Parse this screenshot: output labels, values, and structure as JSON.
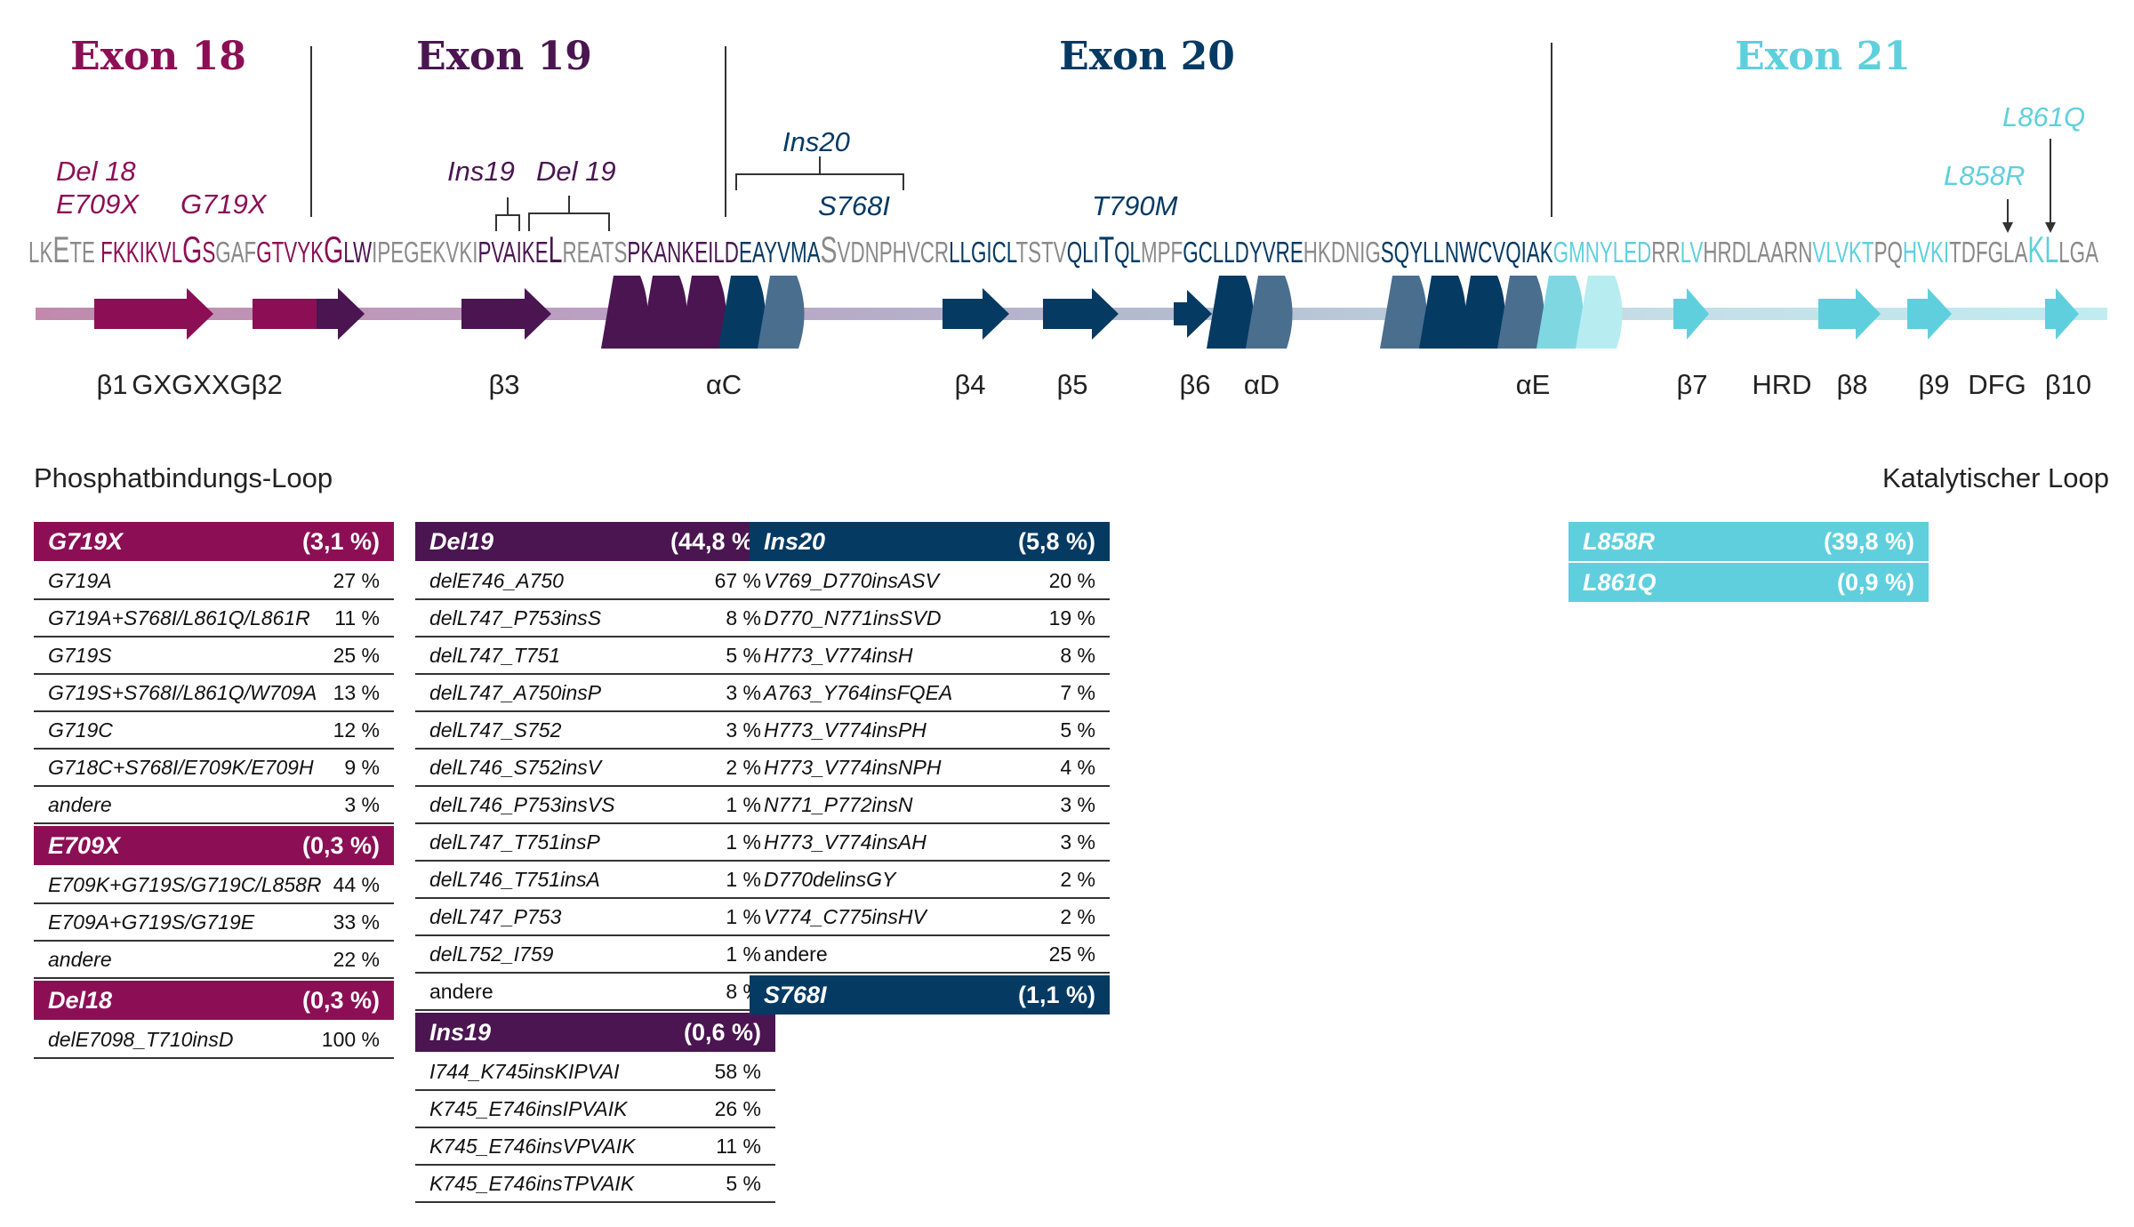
{
  "exons": [
    {
      "label": "Exon 18",
      "color": "#8c0f55"
    },
    {
      "label": "Exon 19",
      "color": "#4a1551"
    },
    {
      "label": "Exon 20",
      "color": "#053a63"
    },
    {
      "label": "Exon 21",
      "color": "#5fcfdd"
    }
  ],
  "mutations": {
    "del18": "Del 18",
    "e709x": "E709X",
    "g719x": "G719X",
    "ins19": "Ins19",
    "del19": "Del 19",
    "ins20": "Ins20",
    "s768i": "S768I",
    "t790m": "T790M",
    "l858r": "L858R",
    "l861q": "L861Q"
  },
  "sequence": [
    {
      "text": "LK",
      "color": "#8a8a8a"
    },
    {
      "text": "E",
      "color": "#8a8a8a",
      "big": true
    },
    {
      "text": "TE ",
      "color": "#8a8a8a"
    },
    {
      "text": "FKKIKVL",
      "color": "#8c0f55"
    },
    {
      "text": "G",
      "color": "#8c0f55",
      "big": true
    },
    {
      "text": "S",
      "color": "#8c0f55"
    },
    {
      "text": "GAF",
      "color": "#8a8a8a"
    },
    {
      "text": "GTVYK",
      "color": "#8c0f55"
    },
    {
      "text": "G",
      "color": "#8c0f55",
      "big": true
    },
    {
      "text": "LW",
      "color": "#4a1551"
    },
    {
      "text": "IPEGEKVKI",
      "color": "#8a8a8a"
    },
    {
      "text": "PVAIKE",
      "color": "#4a1551"
    },
    {
      "text": "L",
      "color": "#4a1551",
      "big": true
    },
    {
      "text": "REATS",
      "color": "#8a8a8a"
    },
    {
      "text": "PKANKEILD",
      "color": "#4a1551"
    },
    {
      "text": "EAYVMA",
      "color": "#053a63"
    },
    {
      "text": "S",
      "color": "#8a8a8a",
      "big": true
    },
    {
      "text": "VDNPHVCR",
      "color": "#8a8a8a"
    },
    {
      "text": "LLGICL",
      "color": "#053a63"
    },
    {
      "text": "TSTV",
      "color": "#8a8a8a"
    },
    {
      "text": "QLI",
      "color": "#053a63"
    },
    {
      "text": "T",
      "color": "#053a63",
      "big": true
    },
    {
      "text": "QL",
      "color": "#053a63"
    },
    {
      "text": "MPF",
      "color": "#8a8a8a"
    },
    {
      "text": "GCLLDYVRE",
      "color": "#053a63"
    },
    {
      "text": "HKDNIG",
      "color": "#8a8a8a"
    },
    {
      "text": "SQYLLNWCVQIAK",
      "color": "#053a63"
    },
    {
      "text": "GMNYLED",
      "color": "#5fcfdd"
    },
    {
      "text": "RR",
      "color": "#8a8a8a"
    },
    {
      "text": "LV",
      "color": "#5fcfdd"
    },
    {
      "text": "HRDLAARN",
      "color": "#8a8a8a"
    },
    {
      "text": "VLVKT",
      "color": "#5fcfdd"
    },
    {
      "text": "PQ",
      "color": "#8a8a8a"
    },
    {
      "text": "HVKI",
      "color": "#5fcfdd"
    },
    {
      "text": "TDFGLA",
      "color": "#8a8a8a"
    },
    {
      "text": "KL",
      "color": "#5fcfdd",
      "big": true
    },
    {
      "text": "LGA",
      "color": "#8a8a8a"
    }
  ],
  "structure_labels": [
    "β1",
    "GXGXXGβ2",
    "β3",
    "αC",
    "β4",
    "β5",
    "β6",
    "αD",
    "αE",
    "β7",
    "HRD",
    "β8",
    "β9",
    "DFG",
    "β10"
  ],
  "region_labels": {
    "phosphate_loop": "Phosphatbindungs-Loop",
    "catalytic_loop": "Katalytischer Loop"
  },
  "tables": {
    "exon18": [
      {
        "name": "G719X",
        "pct": "(3,1 %)",
        "color": "#8c0f55",
        "rows": [
          {
            "name": "G719A",
            "value": "27 %"
          },
          {
            "name": "G719A+S768I/L861Q/L861R",
            "value": "11 %"
          },
          {
            "name": "G719S",
            "value": "25 %"
          },
          {
            "name": "G719S+S768I/L861Q/W709A",
            "value": "13 %"
          },
          {
            "name": "G719C",
            "value": "12 %"
          },
          {
            "name": "G718C+S768I/E709K/E709H",
            "value": "9 %"
          },
          {
            "name": "andere",
            "value": "3 %"
          }
        ]
      },
      {
        "name": "E709X",
        "pct": "(0,3 %)",
        "color": "#8c0f55",
        "rows": [
          {
            "name": "E709K+G719S/G719C/L858R",
            "value": "44 %"
          },
          {
            "name": "E709A+G719S/G719E",
            "value": "33 %"
          },
          {
            "name": "andere",
            "value": "22 %"
          }
        ]
      },
      {
        "name": "Del18",
        "pct": "(0,3 %)",
        "color": "#8c0f55",
        "rows": [
          {
            "name": "delE7098_T710insD",
            "value": "100 %"
          }
        ]
      }
    ],
    "exon19": [
      {
        "name": "Del19",
        "pct": "(44,8 %)",
        "color": "#4a1551",
        "rows": [
          {
            "name": "delE746_A750",
            "value": "67 %"
          },
          {
            "name": "delL747_P753insS",
            "value": "8 %"
          },
          {
            "name": "delL747_T751",
            "value": "5 %"
          },
          {
            "name": "delL747_A750insP",
            "value": "3 %"
          },
          {
            "name": "delL747_S752",
            "value": "3 %"
          },
          {
            "name": "delL746_S752insV",
            "value": "2 %"
          },
          {
            "name": "delL746_P753insVS",
            "value": "1 %"
          },
          {
            "name": "delL747_T751insP",
            "value": "1 %"
          },
          {
            "name": "delL746_T751insA",
            "value": "1 %"
          },
          {
            "name": "delL747_P753",
            "value": "1 %"
          },
          {
            "name": "delL752_I759",
            "value": "1 %"
          },
          {
            "name": "andere",
            "value": "8 %",
            "plain": true
          }
        ]
      },
      {
        "name": "Ins19",
        "pct": "(0,6 %)",
        "color": "#4a1551",
        "rows": [
          {
            "name": "I744_K745insKIPVAI",
            "value": "58 %"
          },
          {
            "name": "K745_E746insIPVAIK",
            "value": "26 %"
          },
          {
            "name": "K745_E746insVPVAIK",
            "value": "11 %"
          },
          {
            "name": "K745_E746insTPVAIK",
            "value": "5 %"
          }
        ]
      }
    ],
    "exon20": [
      {
        "name": "Ins20",
        "pct": "(5,8 %)",
        "color": "#053a63",
        "rows": [
          {
            "name": "V769_D770insASV",
            "value": "20 %"
          },
          {
            "name": "D770_N771insSVD",
            "value": "19 %"
          },
          {
            "name": "H773_V774insH",
            "value": "8 %"
          },
          {
            "name": "A763_Y764insFQEA",
            "value": "7 %"
          },
          {
            "name": "H773_V774insPH",
            "value": "5 %"
          },
          {
            "name": "H773_V774insNPH",
            "value": "4 %"
          },
          {
            "name": "N771_P772insN",
            "value": "3 %"
          },
          {
            "name": "H773_V774insAH",
            "value": "3 %"
          },
          {
            "name": "D770delinsGY",
            "value": "2 %"
          },
          {
            "name": "V774_C775insHV",
            "value": "2 %"
          },
          {
            "name": "andere",
            "value": "25 %",
            "plain": true
          }
        ]
      },
      {
        "name": "S768I",
        "pct": "(1,1 %)",
        "color": "#053a63",
        "rows": []
      }
    ],
    "exon21": [
      {
        "name": "L858R",
        "pct": "(39,8 %)",
        "color": "#5fcfdd",
        "rows": []
      },
      {
        "name": "L861Q",
        "pct": "(0,9 %)",
        "color": "#5fcfdd",
        "rows": []
      }
    ]
  }
}
